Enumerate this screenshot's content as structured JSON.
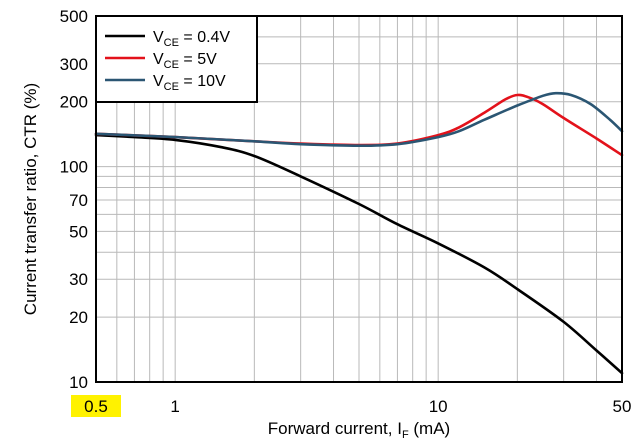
{
  "chart_data": {
    "type": "line",
    "title": "",
    "xlabel": {
      "main": "Forward current, I",
      "sub": "F",
      "unit": " (mA)"
    },
    "ylabel": "Current transfer ratio, CTR (%)",
    "x_scale": "log",
    "y_scale": "log",
    "xlim": [
      0.5,
      50
    ],
    "ylim": [
      10,
      500
    ],
    "x_ticks": [
      {
        "value": 0.5,
        "label": "0.5",
        "highlight": true
      },
      {
        "value": 1,
        "label": "1",
        "highlight": false
      },
      {
        "value": 10,
        "label": "10",
        "highlight": false
      },
      {
        "value": 50,
        "label": "50",
        "highlight": false
      }
    ],
    "y_ticks": [
      {
        "value": 10,
        "label": "10"
      },
      {
        "value": 20,
        "label": "20"
      },
      {
        "value": 30,
        "label": "30"
      },
      {
        "value": 50,
        "label": "50"
      },
      {
        "value": 70,
        "label": "70"
      },
      {
        "value": 100,
        "label": "100"
      },
      {
        "value": 200,
        "label": "200"
      },
      {
        "value": 300,
        "label": "300"
      },
      {
        "value": 500,
        "label": "500"
      }
    ],
    "grid": true,
    "highlight_color": "#fff200",
    "legend_position": "top-left",
    "series": [
      {
        "label_main": "V",
        "label_sub": "CE",
        "label_rest": " = 0.4V",
        "color": "#000000",
        "points": [
          [
            0.5,
            140
          ],
          [
            0.7,
            137
          ],
          [
            1,
            133
          ],
          [
            1.5,
            123
          ],
          [
            2,
            112
          ],
          [
            3,
            90
          ],
          [
            5,
            67
          ],
          [
            7,
            54
          ],
          [
            10,
            44
          ],
          [
            15,
            34
          ],
          [
            20,
            27
          ],
          [
            30,
            19
          ],
          [
            40,
            14
          ],
          [
            50,
            11
          ]
        ]
      },
      {
        "label_main": "V",
        "label_sub": "CE",
        "label_rest": " = 5V",
        "color": "#e3121b",
        "points": [
          [
            0.5,
            142
          ],
          [
            1,
            137
          ],
          [
            2,
            131
          ],
          [
            3,
            128
          ],
          [
            5,
            126
          ],
          [
            7,
            128
          ],
          [
            10,
            140
          ],
          [
            12,
            152
          ],
          [
            15,
            178
          ],
          [
            18,
            205
          ],
          [
            20,
            215
          ],
          [
            22,
            210
          ],
          [
            25,
            195
          ],
          [
            30,
            168
          ],
          [
            40,
            135
          ],
          [
            50,
            113
          ]
        ]
      },
      {
        "label_main": "V",
        "label_sub": "CE",
        "label_rest": " = 10V",
        "color": "#2b5673",
        "points": [
          [
            0.5,
            142
          ],
          [
            1,
            137
          ],
          [
            2,
            131
          ],
          [
            3,
            127
          ],
          [
            5,
            125
          ],
          [
            7,
            127
          ],
          [
            10,
            137
          ],
          [
            12,
            146
          ],
          [
            15,
            165
          ],
          [
            20,
            192
          ],
          [
            25,
            213
          ],
          [
            28,
            219
          ],
          [
            32,
            215
          ],
          [
            38,
            195
          ],
          [
            45,
            165
          ],
          [
            50,
            146
          ]
        ]
      }
    ]
  }
}
